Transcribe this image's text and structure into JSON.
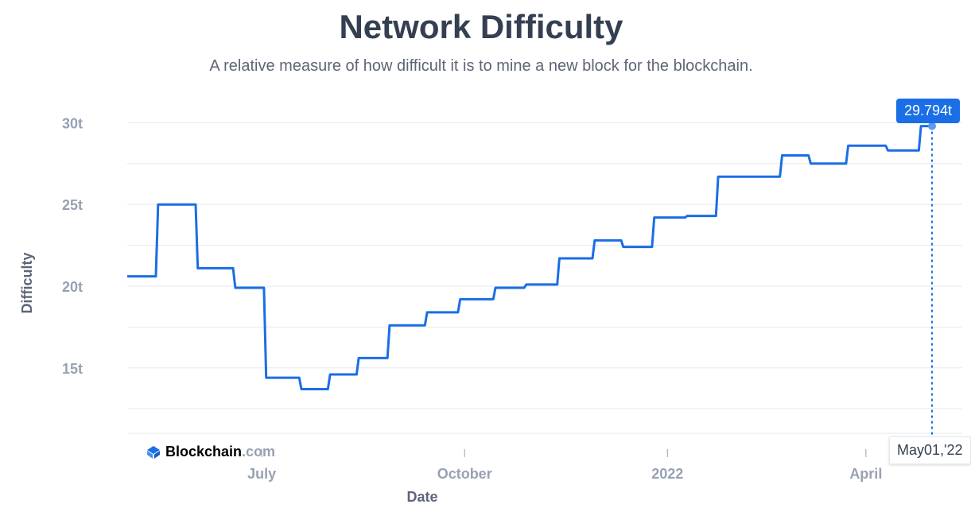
{
  "title": "Network Difficulty",
  "subtitle": "A relative measure of how difficult it is to mine a new block for the blockchain.",
  "brand": {
    "name": "Blockchain",
    "domain": ".com",
    "icon": "blockchain-logo-icon"
  },
  "tooltip": {
    "value": "29.794t",
    "date": "May01,'22"
  },
  "colors": {
    "line": "#1a6ee6",
    "grid": "#e6e8ee",
    "tick": "#98a1b2",
    "title": "#353f52"
  },
  "chart_data": {
    "type": "line",
    "title": "Network Difficulty",
    "xlabel": "Date",
    "ylabel": "Difficulty",
    "y_unit": "t",
    "ylim": [
      11,
      30.7
    ],
    "xlim": [
      "2021-05-01",
      "2022-05-01"
    ],
    "yticks": [
      {
        "value": 15,
        "label": "15t"
      },
      {
        "value": 20,
        "label": "20t"
      },
      {
        "value": 25,
        "label": "25t"
      },
      {
        "value": 30,
        "label": "30t"
      }
    ],
    "xticks": [
      {
        "value": "2021-07-01",
        "label": "July"
      },
      {
        "value": "2021-10-01",
        "label": "October"
      },
      {
        "value": "2022-01-01",
        "label": "2022"
      },
      {
        "value": "2022-04-01",
        "label": "April"
      }
    ],
    "grid": true,
    "legend": "none",
    "series": [
      {
        "x": [
          "2021-05-01",
          "2021-05-14",
          "2021-05-15",
          "2021-06-01",
          "2021-06-02",
          "2021-06-18",
          "2021-06-19",
          "2021-07-02",
          "2021-07-03",
          "2021-07-18",
          "2021-07-19",
          "2021-07-31",
          "2021-08-01",
          "2021-08-13",
          "2021-08-14",
          "2021-08-27",
          "2021-08-28",
          "2021-09-13",
          "2021-09-14",
          "2021-09-28",
          "2021-09-29",
          "2021-10-14",
          "2021-10-15",
          "2021-10-28",
          "2021-10-29",
          "2021-11-12",
          "2021-11-13",
          "2021-11-28",
          "2021-11-29",
          "2021-12-11",
          "2021-12-12",
          "2021-12-25",
          "2021-12-26",
          "2022-01-09",
          "2022-01-10",
          "2022-01-23",
          "2022-01-24",
          "2022-02-04",
          "2022-02-05",
          "2022-02-21",
          "2022-02-22",
          "2022-03-06",
          "2022-03-07",
          "2022-03-23",
          "2022-03-24",
          "2022-04-10",
          "2022-04-11",
          "2022-04-25",
          "2022-04-26",
          "2022-05-01"
        ],
        "y": [
          20.6,
          20.6,
          25.0,
          25.0,
          21.1,
          21.1,
          19.9,
          19.9,
          14.4,
          14.4,
          13.7,
          13.7,
          14.6,
          14.6,
          15.6,
          15.6,
          17.6,
          17.6,
          18.4,
          18.4,
          19.2,
          19.2,
          19.9,
          19.9,
          20.1,
          20.1,
          21.7,
          21.7,
          22.8,
          22.8,
          22.4,
          22.4,
          24.2,
          24.2,
          24.3,
          24.3,
          26.7,
          26.7,
          26.7,
          26.7,
          28.0,
          28.0,
          27.5,
          27.5,
          28.6,
          28.6,
          28.3,
          28.3,
          29.794,
          29.794
        ]
      }
    ]
  }
}
